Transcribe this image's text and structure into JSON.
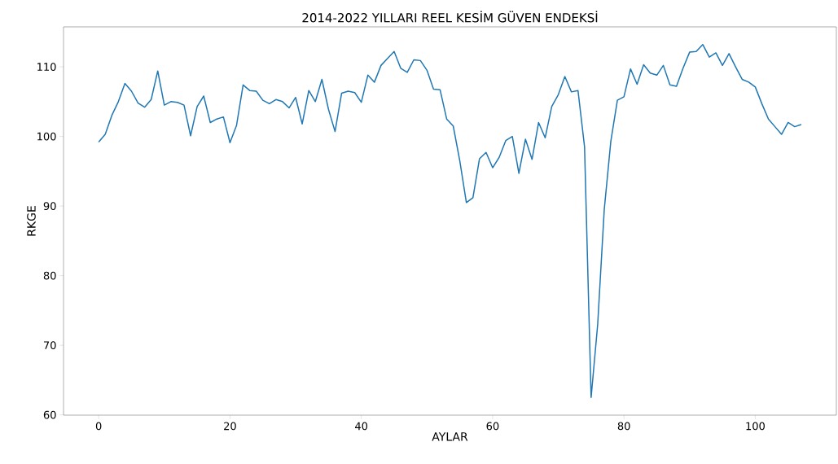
{
  "chart_data": {
    "type": "line",
    "title": "2014-2022 YILLARI REEL KESİM GÜVEN ENDEKSİ",
    "xlabel": "AYLAR",
    "ylabel": "RKGE",
    "x": [
      0,
      1,
      2,
      3,
      4,
      5,
      6,
      7,
      8,
      9,
      10,
      11,
      12,
      13,
      14,
      15,
      16,
      17,
      18,
      19,
      20,
      21,
      22,
      23,
      24,
      25,
      26,
      27,
      28,
      29,
      30,
      31,
      32,
      33,
      34,
      35,
      36,
      37,
      38,
      39,
      40,
      41,
      42,
      43,
      44,
      45,
      46,
      47,
      48,
      49,
      50,
      51,
      52,
      53,
      54,
      55,
      56,
      57,
      58,
      59,
      60,
      61,
      62,
      63,
      64,
      65,
      66,
      67,
      68,
      69,
      70,
      71,
      72,
      73,
      74,
      75,
      76,
      77,
      78,
      79,
      80,
      81,
      82,
      83,
      84,
      85,
      86,
      87,
      88,
      89,
      90,
      91,
      92,
      93,
      94,
      95,
      96,
      97,
      98,
      99,
      100,
      101,
      102,
      103,
      104,
      105,
      106,
      107
    ],
    "series": [
      {
        "color": "#1f77b4",
        "values": [
          99.2,
          100.3,
          103.0,
          105.0,
          107.6,
          106.5,
          104.8,
          104.2,
          105.3,
          109.4,
          104.5,
          105.0,
          104.9,
          104.5,
          100.1,
          104.3,
          105.8,
          102.0,
          102.5,
          102.8,
          99.1,
          101.6,
          107.4,
          106.6,
          106.5,
          105.2,
          104.7,
          105.3,
          105.0,
          104.1,
          105.6,
          101.8,
          106.6,
          105.0,
          108.2,
          103.9,
          100.7,
          106.2,
          106.5,
          106.3,
          104.9,
          108.8,
          107.8,
          110.2,
          111.2,
          112.2,
          109.8,
          109.2,
          111.0,
          110.9,
          109.5,
          106.8,
          106.7,
          102.5,
          101.5,
          96.5,
          90.5,
          91.2,
          96.8,
          97.7,
          95.5,
          97.0,
          99.4,
          100.0,
          94.7,
          99.6,
          96.7,
          102.0,
          99.8,
          104.3,
          106.0,
          108.6,
          106.4,
          106.6,
          98.5,
          62.5,
          73.0,
          89.5,
          99.3,
          105.2,
          105.7,
          109.7,
          107.5,
          110.3,
          109.1,
          108.8,
          110.2,
          107.4,
          107.2,
          109.8,
          112.1,
          112.2,
          113.2,
          111.4,
          112.0,
          110.2,
          111.9,
          110.0,
          108.2,
          107.8,
          107.1,
          104.7,
          102.5,
          101.4,
          100.3,
          102.0,
          101.4,
          101.7
        ]
      }
    ],
    "xlim": [
      -5.35,
      112.35
    ],
    "ylim": [
      59.96,
      115.74
    ],
    "xticks": [
      0,
      20,
      40,
      60,
      80,
      100
    ],
    "yticks": [
      60,
      70,
      80,
      90,
      100,
      110
    ],
    "grid": false,
    "marker": "none",
    "line_style": "solid"
  }
}
